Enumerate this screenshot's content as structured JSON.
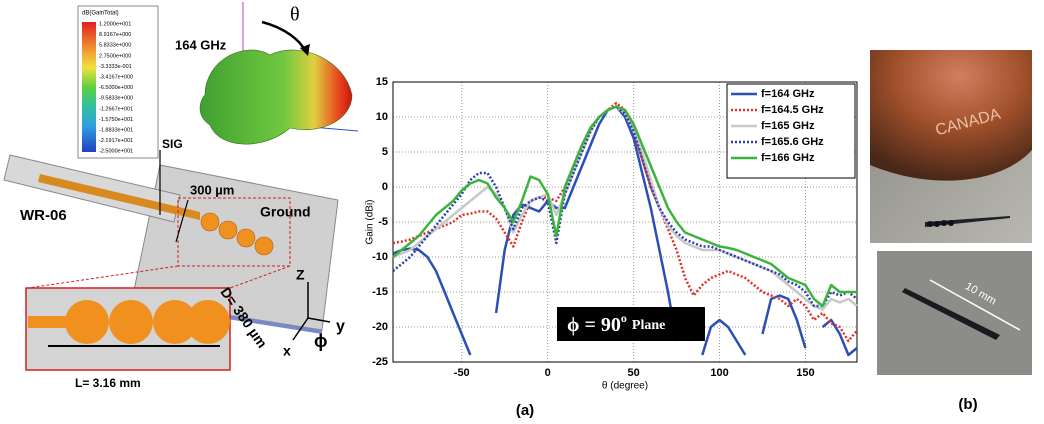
{
  "chart_data": {
    "type": "line",
    "x_label": "θ (degree)",
    "y_label": "Gain (dBi)",
    "xlim": [
      -90,
      180
    ],
    "xticks": [
      -50,
      0,
      50,
      100,
      150
    ],
    "ylim": [
      -25,
      15
    ],
    "yticks": [
      -25,
      -20,
      -15,
      -10,
      -5,
      0,
      5,
      10,
      15
    ],
    "grid": true,
    "legend": "upper-right",
    "annotation": {
      "main": "ϕ = 90",
      "sup": "o",
      "tail": "Plane"
    },
    "x": [
      -90,
      -85,
      -80,
      -75,
      -70,
      -65,
      -60,
      -55,
      -50,
      -45,
      -40,
      -35,
      -30,
      -25,
      -20,
      -15,
      -10,
      -5,
      0,
      5,
      10,
      15,
      20,
      25,
      30,
      35,
      40,
      45,
      50,
      55,
      60,
      65,
      70,
      75,
      80,
      85,
      90,
      95,
      100,
      105,
      110,
      115,
      120,
      125,
      130,
      135,
      140,
      145,
      150,
      155,
      160,
      165,
      170,
      175,
      180
    ],
    "series": [
      {
        "name": "f=164 GHz",
        "color": "#2a4fb5",
        "style": "solid",
        "values": [
          -9.5,
          -9,
          -8.8,
          -9,
          -10,
          -12,
          -15,
          -18,
          -21,
          -24,
          null,
          null,
          -18,
          -9,
          -4,
          -2.5,
          -3,
          -3.5,
          -2,
          -3,
          -3,
          0,
          3,
          6,
          9,
          11,
          11.5,
          10,
          7,
          2,
          -3,
          -9,
          -15,
          -22,
          null,
          null,
          -24,
          -20,
          -19,
          -20,
          -22,
          -24,
          null,
          -21,
          -16,
          -15.5,
          -16,
          -19,
          -23,
          null,
          -20,
          -19,
          -21,
          -24,
          -23
        ]
      },
      {
        "name": "f=164.5 GHz",
        "color": "#e0302a",
        "style": "dotted",
        "values": [
          -8,
          -7.8,
          -7.5,
          -7,
          -6.5,
          -6,
          -5.5,
          -5,
          -4,
          -3.8,
          -3.5,
          -3.5,
          -4.5,
          -6.5,
          -8.5,
          -5,
          -2,
          -1.5,
          -1.5,
          -2,
          0,
          3,
          6,
          8.5,
          10,
          11,
          12,
          11,
          8,
          4,
          0,
          -3,
          -6,
          -9,
          -13,
          -15.5,
          -14,
          -13,
          -12.5,
          -12,
          -12.5,
          -13,
          -14,
          -15,
          -15.5,
          -16,
          -17,
          -16,
          -17,
          -19,
          -18,
          -19.5,
          -20,
          -22,
          -20.5
        ]
      },
      {
        "name": "f=165 GHz",
        "color": "#c8c8c8",
        "style": "solid",
        "values": [
          -10,
          -9.5,
          -9,
          -8,
          -7,
          -6,
          -5,
          -4,
          -3,
          -2,
          -1,
          0,
          -1,
          -3,
          -6.5,
          -4,
          -2,
          -1.5,
          -1,
          -4,
          -1,
          2,
          5,
          8,
          10,
          11,
          11.5,
          10.5,
          8,
          5,
          1,
          -3,
          -5.5,
          -7,
          -8,
          -8.5,
          -9,
          -9,
          -9,
          -9.5,
          -10,
          -10.5,
          -11,
          -11.5,
          -12,
          -13,
          -14,
          -15,
          -16,
          -17,
          -17.5,
          -16,
          -16.5,
          -16,
          -17
        ]
      },
      {
        "name": "f=165.6 GHz",
        "color": "#2a3fb0",
        "style": "dotted",
        "values": [
          -12,
          -11,
          -10,
          -8.5,
          -7,
          -5.5,
          -4,
          -2.5,
          -1,
          1,
          2,
          2,
          0,
          -3,
          -6,
          -3,
          -2,
          -1.5,
          -2,
          -8,
          -1,
          2,
          5,
          8,
          10,
          11,
          11.5,
          10.5,
          8,
          4,
          0,
          -3,
          -5,
          -6.5,
          -7.5,
          -8,
          -8.5,
          -8.5,
          -9,
          -9.5,
          -10,
          -10.5,
          -11,
          -11.5,
          -12,
          -12.5,
          -13.5,
          -14,
          -15,
          -17,
          -17,
          -15,
          -15.5,
          -15,
          -16
        ]
      },
      {
        "name": "f=166 GHz",
        "color": "#3cb43c",
        "style": "solid",
        "values": [
          -10,
          -9,
          -8,
          -7,
          -5.5,
          -4,
          -3,
          -2,
          -0.5,
          0.5,
          1,
          0.5,
          -1.5,
          -3,
          -5,
          -2,
          1.5,
          1,
          -1,
          -7,
          0,
          3,
          6,
          8.5,
          10,
          11,
          11.5,
          11,
          9,
          6,
          3,
          0,
          -3,
          -5,
          -6.5,
          -7,
          -7.5,
          -8,
          -8.5,
          -8.7,
          -9,
          -9.5,
          -10,
          -10.5,
          -11,
          -12,
          -13,
          -13.5,
          -14,
          -16,
          -17,
          -14,
          -15,
          -15,
          -15
        ]
      }
    ]
  },
  "diagram": {
    "colorbar_title": "dB(GainTotal)",
    "colorbar_labels": [
      "1.2000e+001",
      "8.9167e+000",
      "5.8333e+000",
      "2.7500e+000",
      "-3.3333e-001",
      "-3.4167e+000",
      "-6.5000e+000",
      "-9.5833e+000",
      "-1.2667e+001",
      "-1.5750e+001",
      "-1.8833e+001",
      "-2.1917e+001",
      "-2.5000e+001"
    ],
    "freq": "164 GHz",
    "theta": "θ",
    "sig": "SIG",
    "width": "300 µm",
    "ground": "Ground",
    "waveguide": "WR-06",
    "diameter": "D= 380 µm",
    "length": "L= 3.16 mm",
    "axis_z": "Z",
    "axis_y": "y",
    "axis_x": "x",
    "axis_phi": "ϕ"
  },
  "photos": {
    "scale": "10 mm",
    "coin_text": "CANADA"
  },
  "captions": {
    "a": "(a)",
    "b": "(b)"
  }
}
